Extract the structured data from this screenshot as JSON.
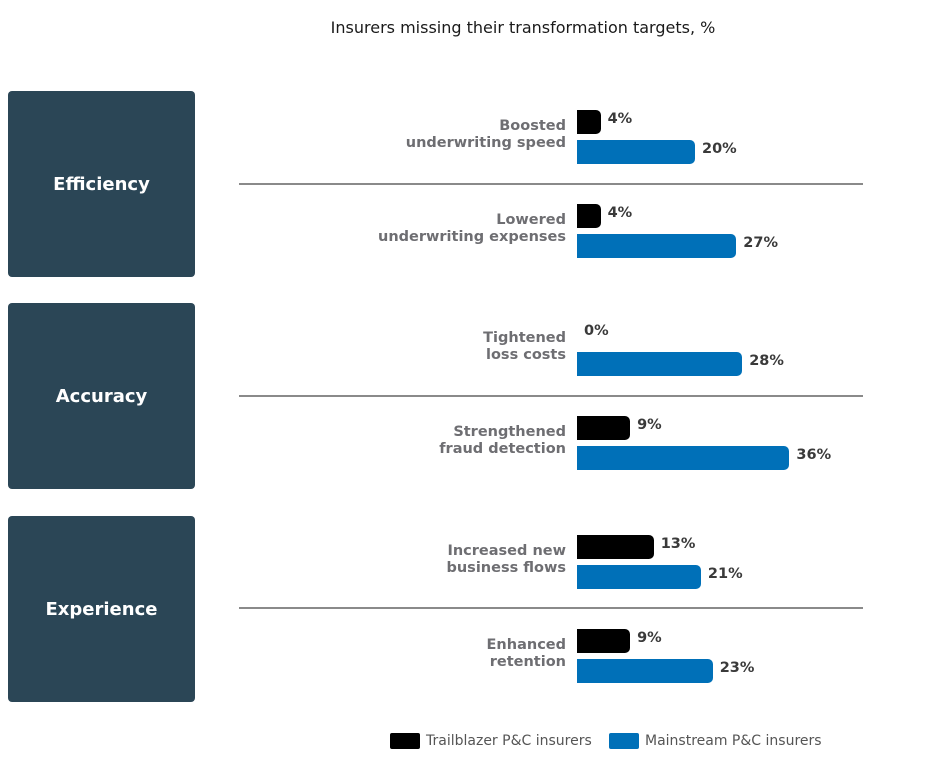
{
  "chart_data": {
    "type": "bar",
    "orientation": "horizontal",
    "title": "Insurers missing their transformation targets, %",
    "groups": [
      {
        "name": "Efficiency",
        "rows": [
          {
            "label": [
              "Boosted",
              "underwriting speed"
            ],
            "trailblazer": 4,
            "mainstream": 20
          },
          {
            "label": [
              "Lowered",
              "underwriting expenses"
            ],
            "trailblazer": 4,
            "mainstream": 27
          }
        ]
      },
      {
        "name": "Accuracy",
        "rows": [
          {
            "label": [
              "Tightened",
              "loss costs"
            ],
            "trailblazer": 0,
            "mainstream": 28
          },
          {
            "label": [
              "Strengthened",
              "fraud detection"
            ],
            "trailblazer": 9,
            "mainstream": 36
          }
        ]
      },
      {
        "name": "Experience",
        "rows": [
          {
            "label": [
              "Increased new",
              "business flows"
            ],
            "trailblazer": 13,
            "mainstream": 21
          },
          {
            "label": [
              "Enhanced",
              "retention"
            ],
            "trailblazer": 9,
            "mainstream": 23
          }
        ]
      }
    ],
    "series": [
      {
        "key": "trailblazer",
        "name": "Trailblazer P&C insurers",
        "color": "#000000"
      },
      {
        "key": "mainstream",
        "name": "Mainstream P&C insurers",
        "color": "#0070b8"
      }
    ],
    "value_suffix": "%",
    "xlim": [
      0,
      40
    ]
  }
}
